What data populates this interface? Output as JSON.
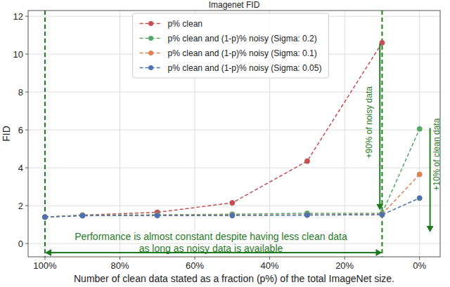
{
  "chart_data": {
    "type": "line",
    "title": "Imagenet FID",
    "x_label": "Number of clean data stated as a fraction (p%) of the total ImageNet size.",
    "y_label": "FID",
    "x": [
      100,
      90,
      70,
      50,
      30,
      10,
      0
    ],
    "series": [
      {
        "name": "p% clean",
        "color": "#c44e52",
        "values": [
          1.4,
          1.5,
          1.65,
          2.15,
          4.35,
          10.6,
          null
        ]
      },
      {
        "name": "p% clean and (1-p)% noisy (Sigma: 0.2)",
        "color": "#55a868",
        "values": [
          1.4,
          1.5,
          1.52,
          1.55,
          1.6,
          1.6,
          6.05
        ]
      },
      {
        "name": "p% clean and (1-p)% noisy (Sigma: 0.1)",
        "color": "#dd8452",
        "values": [
          1.4,
          1.48,
          1.5,
          1.5,
          1.52,
          1.55,
          3.65
        ]
      },
      {
        "name": "p% clean and (1-p)% noisy (Sigma: 0.05)",
        "color": "#4c72b0",
        "values": [
          1.4,
          1.47,
          1.48,
          1.48,
          1.5,
          1.52,
          2.4
        ]
      }
    ],
    "xlim": [
      104.5,
      -5.5
    ],
    "ylim": [
      -0.7,
      12.3
    ],
    "xticks": [
      {
        "value": 100,
        "label": "100%"
      },
      {
        "value": 80,
        "label": "80%"
      },
      {
        "value": 60,
        "label": "60%"
      },
      {
        "value": 40,
        "label": "40%"
      },
      {
        "value": 20,
        "label": "20%"
      },
      {
        "value": 0,
        "label": "0%"
      }
    ],
    "yticks": [
      0,
      2,
      4,
      6,
      8,
      10,
      12
    ],
    "grid": true,
    "legend": "upper center",
    "marker": "circle",
    "line_style": "dashed",
    "vlines": [
      100,
      10
    ],
    "annotations": [
      {
        "text": "+90% of noisy data",
        "x": 13.5,
        "y": 6.4,
        "orientation": "vertical"
      },
      {
        "text": "+10% of clean data",
        "x": -4.6,
        "y": 4.7,
        "orientation": "vertical"
      },
      {
        "text": "Performance is almost constant despite having less clean data",
        "x": 55.7,
        "y": 0.37
      },
      {
        "text": "as long as noisy data is available",
        "x": 55.7,
        "y": -0.26
      }
    ],
    "arrows": [
      {
        "x": 10.6,
        "y": 10.55,
        "x_end": 10.6,
        "y_end": 1.75,
        "marker": "end"
      },
      {
        "x": -2.8,
        "y": 6.1,
        "x_end": -2.8,
        "y_end": 0.6,
        "marker": "end"
      },
      {
        "x": 100,
        "y": -0.48,
        "x_end": 10,
        "y_end": -0.48,
        "marker": "both"
      }
    ]
  }
}
